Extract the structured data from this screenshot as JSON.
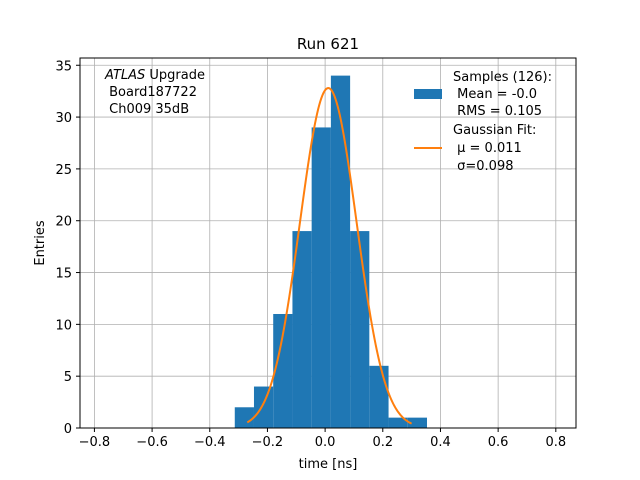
{
  "chart_data": {
    "type": "bar",
    "title": "Run 621",
    "xlabel": "time [ns]",
    "ylabel": "Entries",
    "xlim": [
      -0.85,
      0.87
    ],
    "ylim": [
      0,
      35.7
    ],
    "grid": true,
    "x_ticks": [
      -0.8,
      -0.6,
      -0.4,
      -0.2,
      0.0,
      0.2,
      0.4,
      0.6,
      0.8
    ],
    "x_tick_labels": [
      "−0.8",
      "−0.6",
      "−0.4",
      "−0.2",
      "0.0",
      "0.2",
      "0.4",
      "0.6",
      "0.8"
    ],
    "y_ticks": [
      0,
      5,
      10,
      15,
      20,
      25,
      30,
      35
    ],
    "y_tick_labels": [
      "0",
      "5",
      "10",
      "15",
      "20",
      "25",
      "30",
      "35"
    ],
    "histogram": {
      "name": "Samples (126):",
      "color": "#1f77b4",
      "bin_edges": [
        -0.3133,
        -0.2467,
        -0.18,
        -0.1133,
        -0.0467,
        0.02,
        0.0867,
        0.1533,
        0.22,
        0.2867,
        0.3533
      ],
      "counts": [
        2,
        4,
        11,
        19,
        29,
        34,
        19,
        6,
        1,
        1
      ]
    },
    "fit": {
      "name": "Gaussian Fit:",
      "color": "#ff7f0e",
      "amplitude": 32.8,
      "mu": 0.011,
      "sigma": 0.098,
      "x_range": [
        -0.27,
        0.3
      ]
    },
    "legend": {
      "placement": "top-right",
      "entries": [
        {
          "type": "patch",
          "color": "#1f77b4",
          "lines": [
            "Samples (126):",
            " Mean = -0.0",
            " RMS = 0.105"
          ]
        },
        {
          "type": "line",
          "color": "#ff7f0e",
          "lines": [
            "Gaussian Fit:",
            " μ = 0.011",
            " σ=0.098"
          ]
        }
      ]
    },
    "annotation": {
      "placement": "top-left",
      "line1_italic": "ATLAS",
      "line1_rest": " Upgrade",
      "line2": " Board187722",
      "line3": " Ch009 35dB"
    }
  }
}
